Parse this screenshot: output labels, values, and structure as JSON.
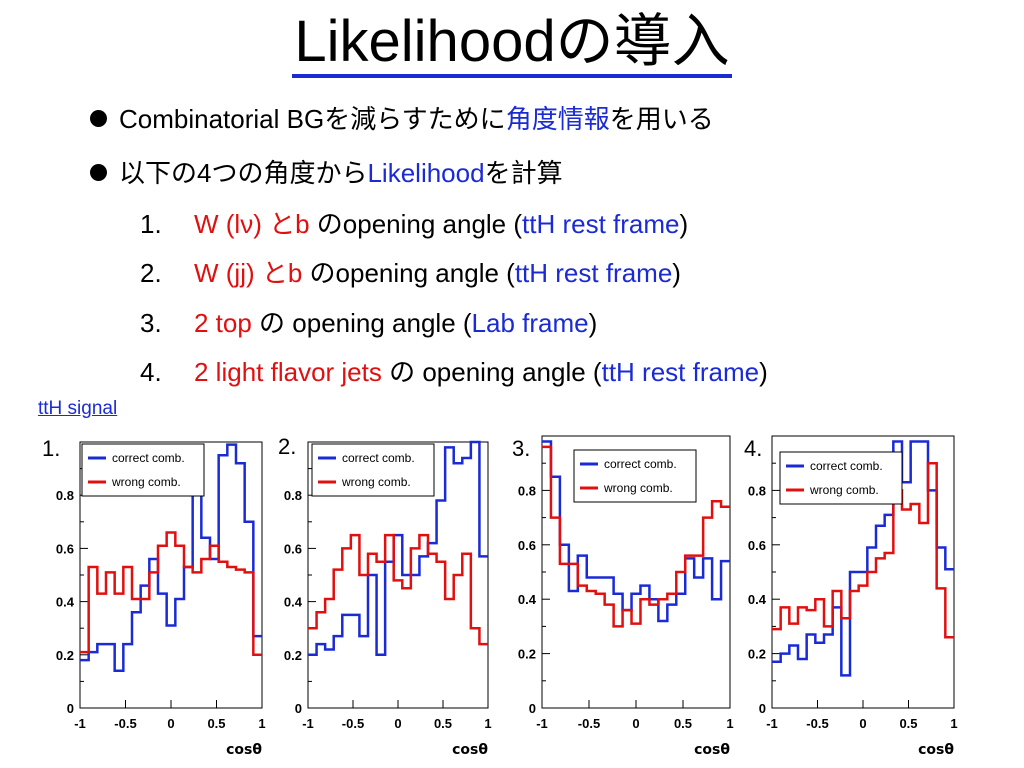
{
  "title": "Likelihoodの導入",
  "bullets": [
    {
      "pre": "Combinatorial BGを減らすために",
      "hl": "角度情報",
      "post": "を用いる"
    },
    {
      "pre": "以下の4つの角度から",
      "hl": "Likelihood",
      "post": "を計算"
    }
  ],
  "items": [
    {
      "num": "1.",
      "red": "W (lν) とb",
      "mid": " のopening angle (",
      "blue": "ttH rest frame",
      "end": ")"
    },
    {
      "num": "2.",
      "red": "W (jj) とb",
      "mid": " のopening angle (",
      "blue": "ttH rest frame",
      "end": ")"
    },
    {
      "num": "3.",
      "red": "2 top",
      "mid": " の opening angle (",
      "blue": "Lab frame",
      "end": ")"
    },
    {
      "num": "4.",
      "red": "2 light flavor jets",
      "mid": " の opening angle (",
      "blue": "ttH rest frame",
      "end": ")"
    }
  ],
  "signal_label": "ttH signal",
  "colors": {
    "blue": "#1a2bd6",
    "red": "#e01010"
  },
  "chart_data": [
    {
      "type": "histogram",
      "panel_label": "1.",
      "xlabel": "cosθ",
      "xlim": [
        -1,
        1
      ],
      "ylim": [
        0,
        1
      ],
      "xticks": [
        "-1",
        "-0.5",
        "0",
        "0.5",
        "1"
      ],
      "yticks": [
        "0",
        "0.2",
        "0.4",
        "0.6",
        "0.8"
      ],
      "legend": [
        "correct comb.",
        "wrong comb."
      ],
      "series": [
        {
          "name": "correct comb.",
          "color": "#1a2bd6",
          "values": [
            0.18,
            0.21,
            0.24,
            0.24,
            0.14,
            0.24,
            0.36,
            0.46,
            0.56,
            0.43,
            0.31,
            0.41,
            0.53,
            0.81,
            0.64,
            0.56,
            0.95,
            0.99,
            0.92,
            0.7,
            0.27
          ]
        },
        {
          "name": "wrong comb.",
          "color": "#e01010",
          "values": [
            0.21,
            0.53,
            0.43,
            0.51,
            0.43,
            0.53,
            0.41,
            0.41,
            0.51,
            0.61,
            0.66,
            0.61,
            0.53,
            0.51,
            0.56,
            0.61,
            0.55,
            0.53,
            0.52,
            0.51,
            0.2
          ]
        }
      ]
    },
    {
      "type": "histogram",
      "panel_label": "2.",
      "xlabel": "cosθ",
      "xlim": [
        -1,
        1
      ],
      "ylim": [
        0,
        1
      ],
      "xticks": [
        "-1",
        "-0.5",
        "0",
        "0.5",
        "1"
      ],
      "yticks": [
        "0",
        "0.2",
        "0.4",
        "0.6",
        "0.8"
      ],
      "legend": [
        "correct comb.",
        "wrong comb."
      ],
      "series": [
        {
          "name": "correct comb.",
          "color": "#1a2bd6",
          "values": [
            0.2,
            0.24,
            0.22,
            0.27,
            0.35,
            0.35,
            0.27,
            0.5,
            0.2,
            0.55,
            0.65,
            0.5,
            0.5,
            0.57,
            0.62,
            0.78,
            0.98,
            0.92,
            0.94,
            1.0,
            0.57
          ]
        },
        {
          "name": "wrong comb.",
          "color": "#e01010",
          "values": [
            0.3,
            0.36,
            0.41,
            0.52,
            0.6,
            0.65,
            0.5,
            0.58,
            0.55,
            0.65,
            0.48,
            0.45,
            0.6,
            0.65,
            0.58,
            0.55,
            0.41,
            0.5,
            0.58,
            0.3,
            0.24
          ]
        }
      ]
    },
    {
      "type": "histogram",
      "panel_label": "3.",
      "xlabel": "cosθ",
      "xlim": [
        -1,
        1
      ],
      "ylim": [
        0,
        1
      ],
      "xticks": [
        "-1",
        "-0.5",
        "0",
        "0.5",
        "1"
      ],
      "yticks": [
        "0",
        "0.2",
        "0.4",
        "0.6",
        "0.8"
      ],
      "legend": [
        "correct comb.",
        "wrong comb."
      ],
      "series": [
        {
          "name": "correct comb.",
          "color": "#1a2bd6",
          "values": [
            0.98,
            0.85,
            0.6,
            0.43,
            0.56,
            0.48,
            0.48,
            0.48,
            0.42,
            0.36,
            0.42,
            0.45,
            0.4,
            0.32,
            0.38,
            0.42,
            0.55,
            0.48,
            0.55,
            0.4,
            0.54
          ]
        },
        {
          "name": "wrong comb.",
          "color": "#e01010",
          "values": [
            0.96,
            0.7,
            0.53,
            0.53,
            0.45,
            0.43,
            0.42,
            0.38,
            0.3,
            0.36,
            0.31,
            0.4,
            0.38,
            0.4,
            0.42,
            0.5,
            0.56,
            0.56,
            0.7,
            0.76,
            0.74
          ]
        }
      ]
    },
    {
      "type": "histogram",
      "panel_label": "4.",
      "xlabel": "cosθ",
      "xlim": [
        -1,
        1
      ],
      "ylim": [
        0,
        1
      ],
      "xticks": [
        "-1",
        "-0.5",
        "0",
        "0.5",
        "1"
      ],
      "yticks": [
        "0",
        "0.2",
        "0.4",
        "0.6",
        "0.8"
      ],
      "legend": [
        "correct comb.",
        "wrong comb."
      ],
      "series": [
        {
          "name": "correct comb.",
          "color": "#1a2bd6",
          "values": [
            0.17,
            0.2,
            0.23,
            0.18,
            0.27,
            0.24,
            0.27,
            0.37,
            0.12,
            0.5,
            0.5,
            0.59,
            0.67,
            0.71,
            0.98,
            0.83,
            0.98,
            0.98,
            0.8,
            0.59,
            0.51
          ]
        },
        {
          "name": "wrong comb.",
          "color": "#e01010",
          "values": [
            0.29,
            0.37,
            0.31,
            0.37,
            0.36,
            0.4,
            0.3,
            0.43,
            0.33,
            0.43,
            0.45,
            0.5,
            0.55,
            0.57,
            0.8,
            0.73,
            0.75,
            0.68,
            0.9,
            0.44,
            0.26
          ]
        }
      ]
    }
  ]
}
